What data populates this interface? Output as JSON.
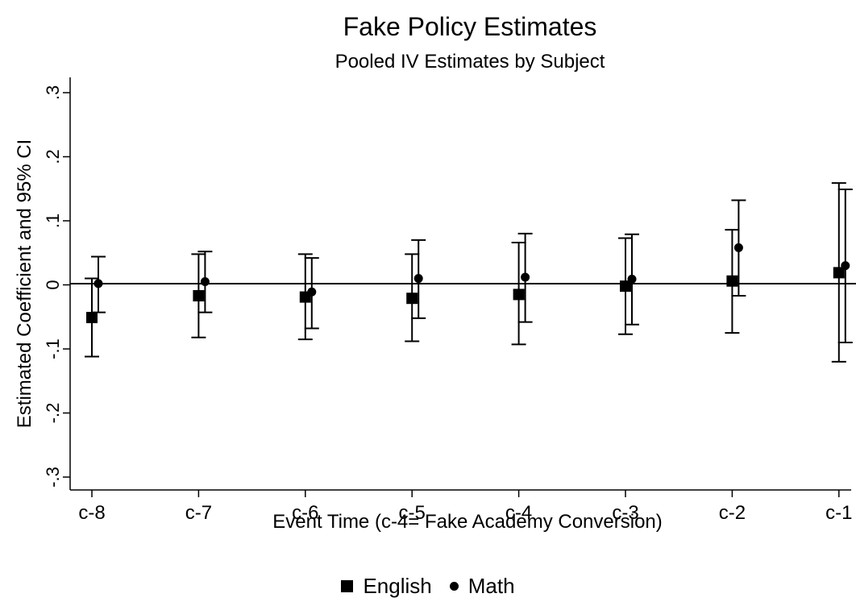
{
  "chart_data": {
    "type": "scatter",
    "title": "Fake Policy Estimates",
    "subtitle": "Pooled IV Estimates by Subject",
    "xlabel": "Event Time (c-4= Fake Academy Conversion)",
    "ylabel": "Estimated Coefficient and 95% CI",
    "categories": [
      "c-8",
      "c-7",
      "c-6",
      "c-5",
      "c-4",
      "c-3",
      "c-2",
      "c-1"
    ],
    "ylim": [
      -0.3,
      0.3
    ],
    "yticks": [
      -0.3,
      -0.2,
      -0.1,
      0,
      0.1,
      0.2,
      0.3
    ],
    "ytick_labels": [
      "-.3",
      "-.2",
      "-.1",
      "0",
      ".1",
      ".2",
      ".3"
    ],
    "reference_line": 0,
    "grid": false,
    "legend_position": "bottom",
    "series": [
      {
        "name": "English",
        "marker": "square",
        "values": [
          -0.051,
          -0.017,
          -0.019,
          -0.021,
          -0.015,
          -0.002,
          0.006,
          0.019
        ],
        "ci_low": [
          -0.112,
          -0.082,
          -0.085,
          -0.088,
          -0.093,
          -0.077,
          -0.075,
          -0.12
        ],
        "ci_high": [
          0.01,
          0.048,
          0.048,
          0.048,
          0.066,
          0.073,
          0.086,
          0.159
        ]
      },
      {
        "name": "Math",
        "marker": "circle",
        "values": [
          0.002,
          0.005,
          -0.011,
          0.01,
          0.012,
          0.009,
          0.058,
          0.03
        ],
        "ci_low": [
          -0.043,
          -0.043,
          -0.068,
          -0.052,
          -0.058,
          -0.062,
          -0.017,
          -0.09
        ],
        "ci_high": [
          0.044,
          0.052,
          0.042,
          0.07,
          0.08,
          0.079,
          0.132,
          0.149
        ]
      }
    ]
  },
  "colors": {
    "ink": "#000000",
    "background": "#ffffff"
  }
}
